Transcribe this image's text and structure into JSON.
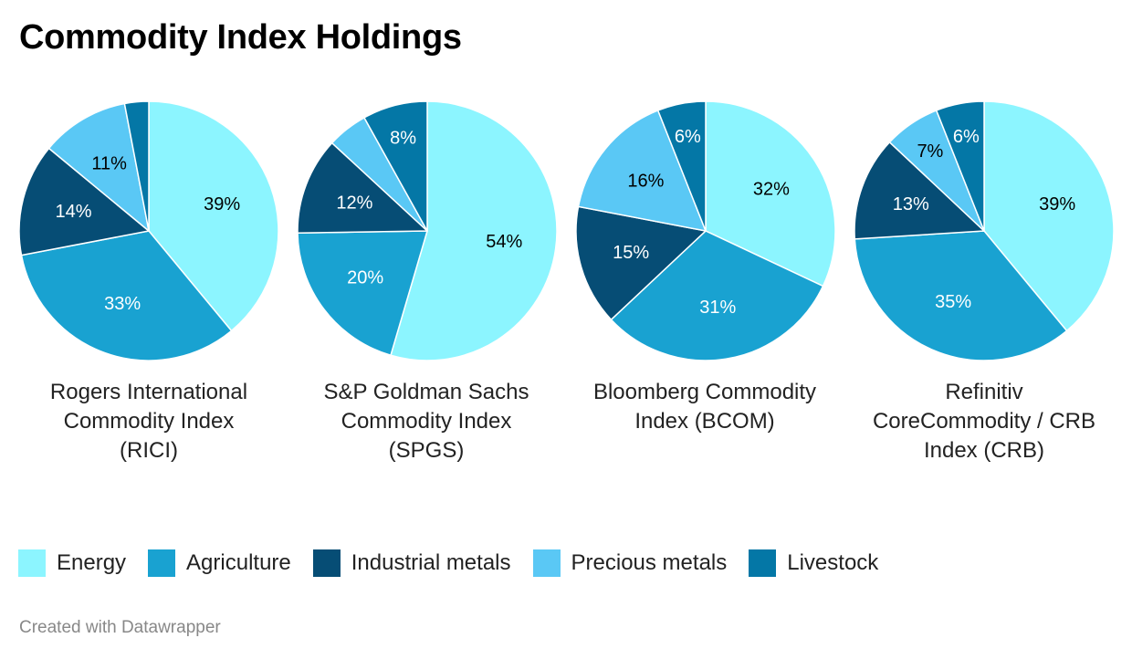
{
  "header": {
    "title": "Commodity Index Holdings"
  },
  "credit": "Created with Datawrapper",
  "chart_data": {
    "type": "pie",
    "title": "Commodity Index Holdings",
    "legend_position": "bottom",
    "categories": [
      "Energy",
      "Agriculture",
      "Industrial metals",
      "Precious metals",
      "Livestock"
    ],
    "colors": [
      "#8cf5ff",
      "#19a2d1",
      "#064d75",
      "#5ac8f5",
      "#0477a6"
    ],
    "pies": [
      {
        "name": "Rogers International Commodity Index (RICI)",
        "values": [
          39,
          33,
          14,
          11,
          3
        ],
        "labels": [
          "39%",
          "33%",
          "14%",
          "11%",
          ""
        ]
      },
      {
        "name": "S&P Goldman Sachs Commodity Index (SPGS)",
        "values": [
          54,
          20,
          12,
          5,
          8
        ],
        "labels": [
          "54%",
          "20%",
          "12%",
          "",
          "8%"
        ]
      },
      {
        "name": "Bloomberg Commodity Index (BCOM)",
        "values": [
          32,
          31,
          15,
          16,
          6
        ],
        "labels": [
          "32%",
          "31%",
          "15%",
          "16%",
          "6%"
        ]
      },
      {
        "name": "Refinitiv CoreCommodity / CRB Index (CRB)",
        "values": [
          39,
          35,
          13,
          7,
          6
        ],
        "labels": [
          "39%",
          "35%",
          "13%",
          "7%",
          "6%"
        ]
      }
    ]
  }
}
